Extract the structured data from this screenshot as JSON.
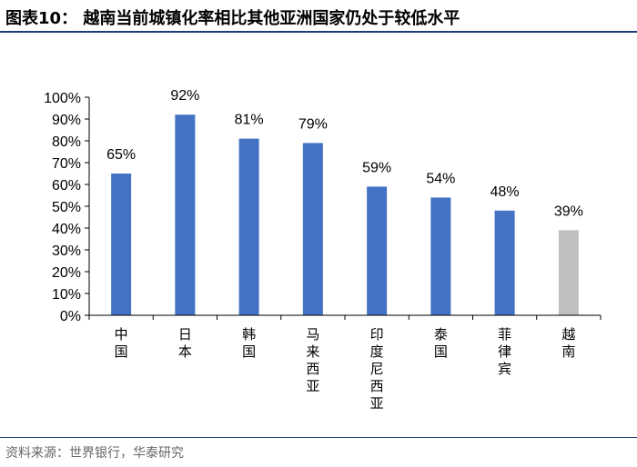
{
  "title": "图表10：  越南当前城镇化率相比其他亚洲国家仍处于较低水平",
  "source": "资料来源：世界银行，华泰研究",
  "colors": {
    "primary_bar": "#4472c4",
    "highlight_bar": "#bfbfbf",
    "axis": "#000000",
    "rule": "#1f3d7a"
  },
  "chart_data": {
    "type": "bar",
    "categories": [
      "中国",
      "日本",
      "韩国",
      "马来西亚",
      "印度尼西亚",
      "泰国",
      "菲律宾",
      "越南"
    ],
    "values": [
      65,
      92,
      81,
      79,
      59,
      54,
      48,
      39
    ],
    "data_labels": [
      "65%",
      "92%",
      "81%",
      "79%",
      "59%",
      "54%",
      "48%",
      "39%"
    ],
    "highlight_index": 7,
    "ylim": [
      0,
      100
    ],
    "yticks": [
      0,
      10,
      20,
      30,
      40,
      50,
      60,
      70,
      80,
      90,
      100
    ],
    "ytick_labels": [
      "0%",
      "10%",
      "20%",
      "30%",
      "40%",
      "50%",
      "60%",
      "70%",
      "80%",
      "90%",
      "100%"
    ],
    "title": "",
    "xlabel": "",
    "ylabel": "",
    "grid": false,
    "legend": "none"
  }
}
